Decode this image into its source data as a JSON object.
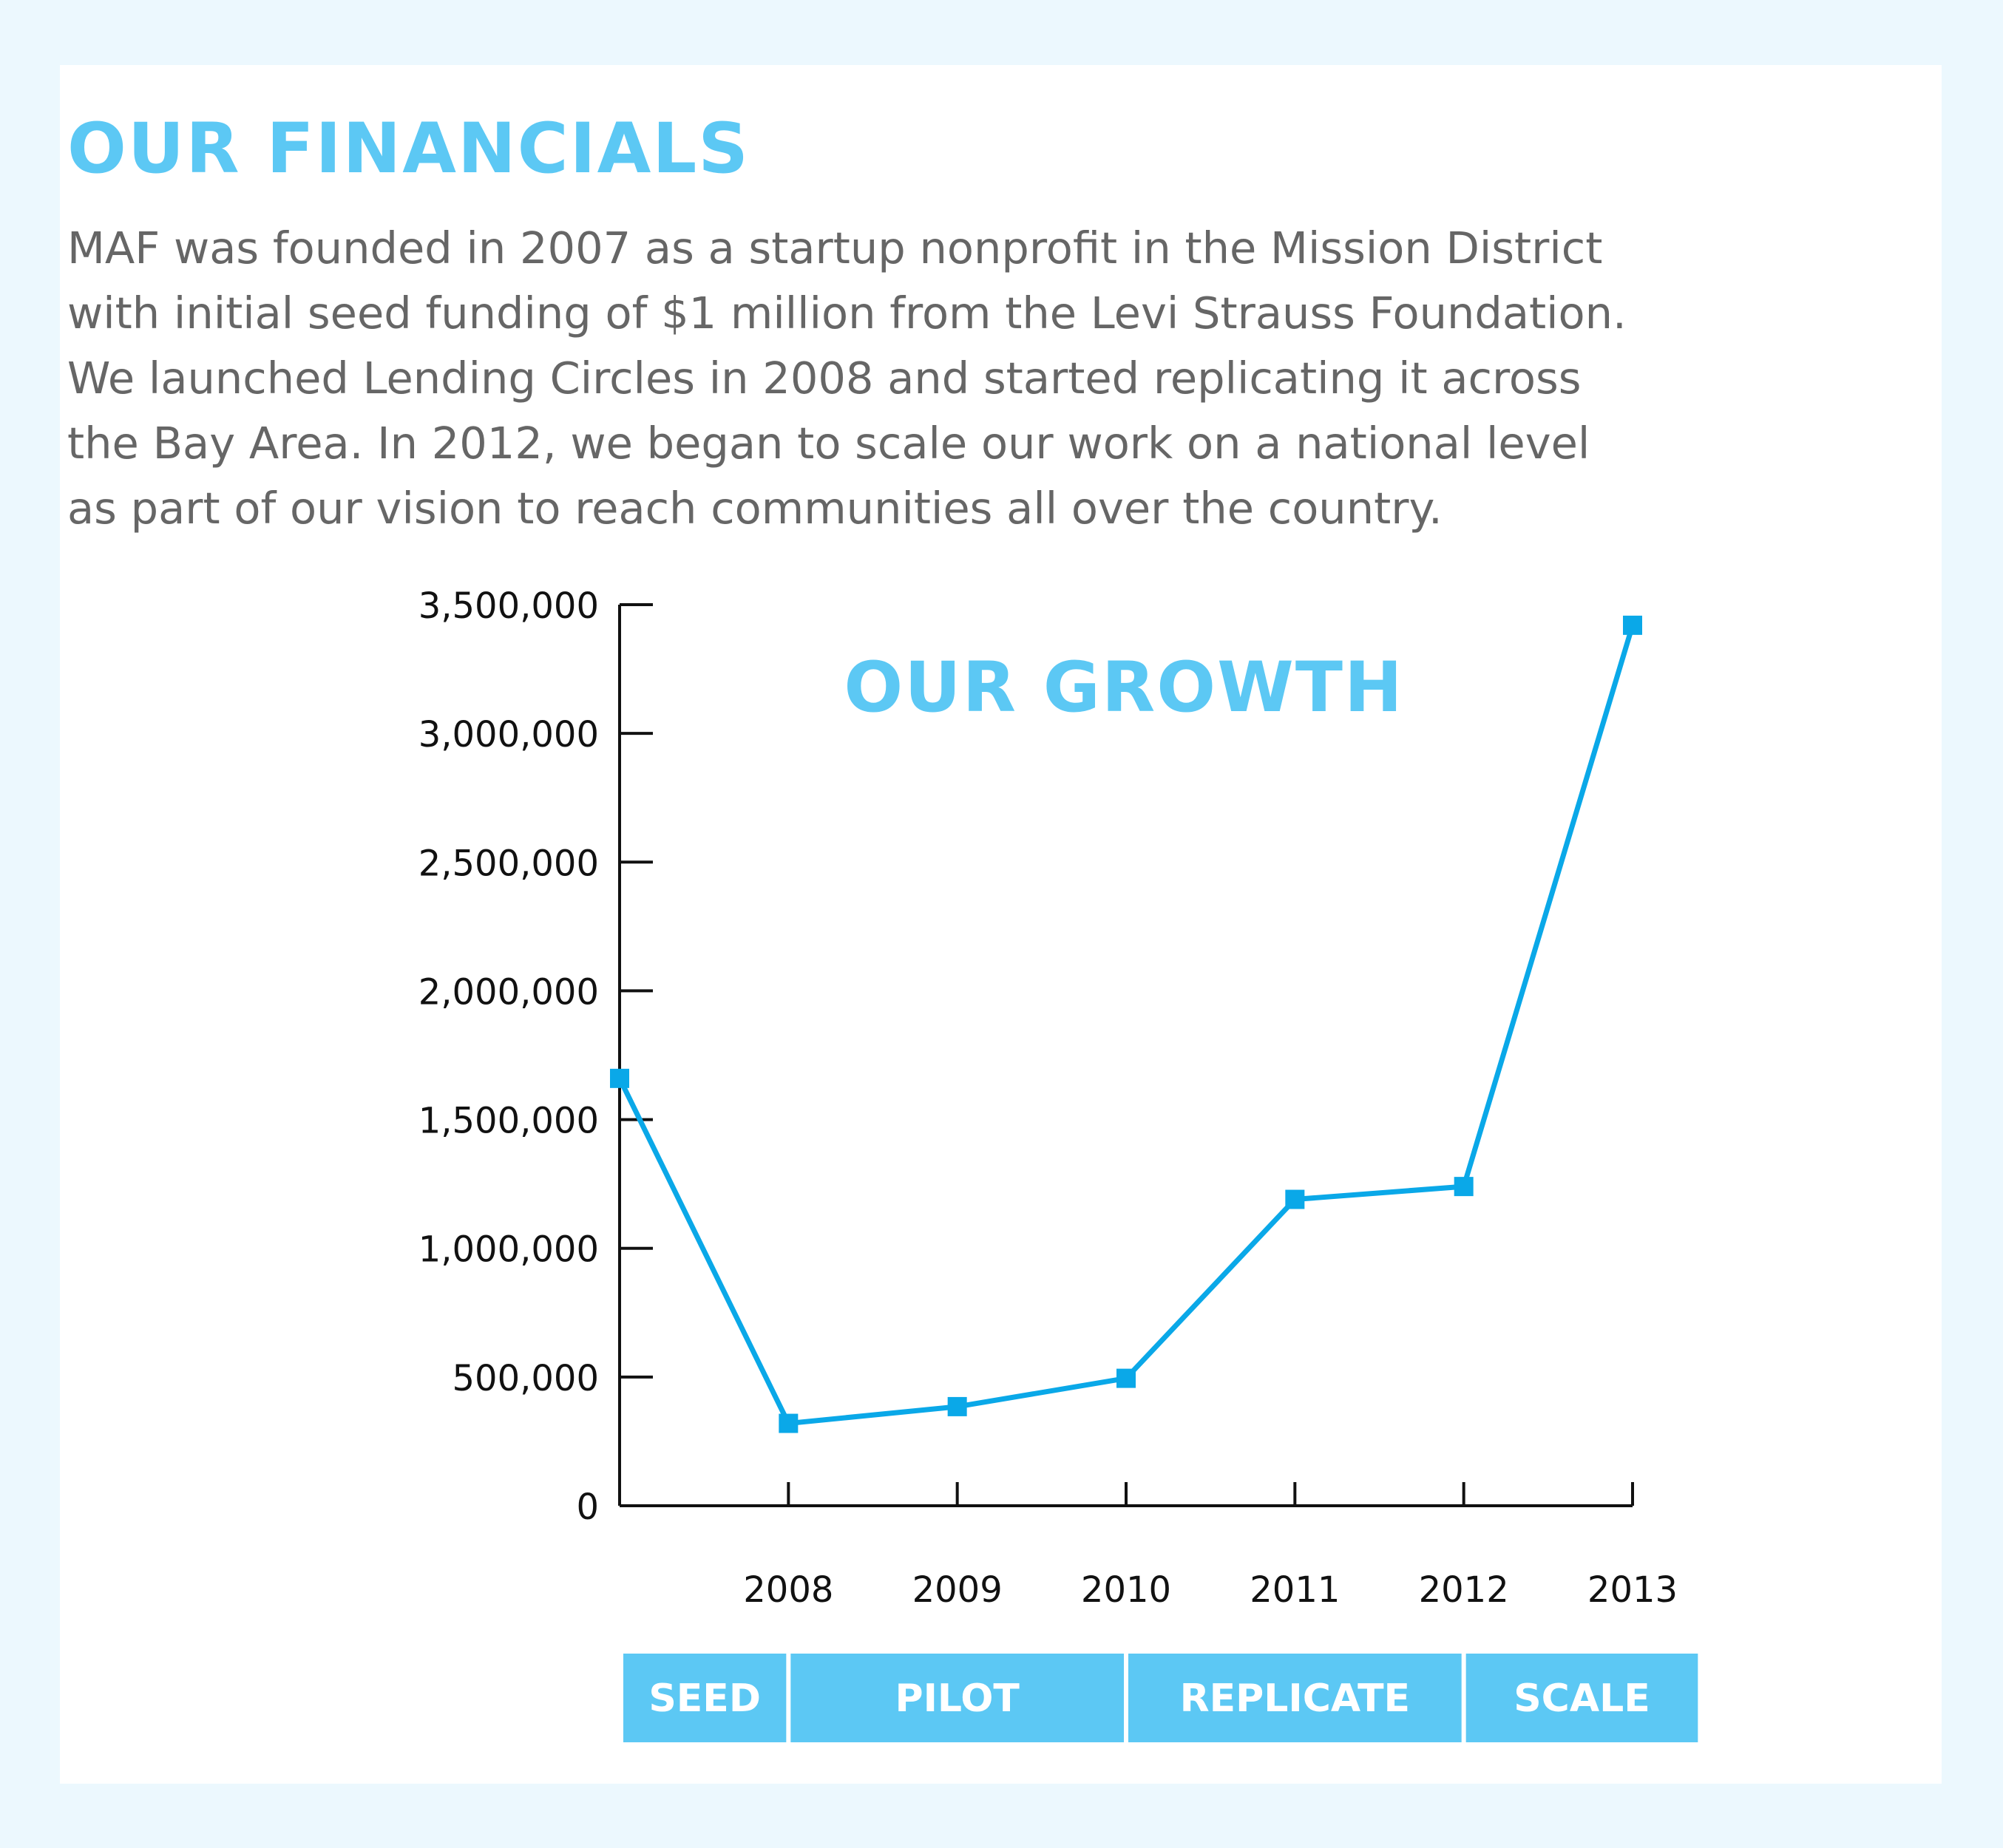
{
  "page": {
    "heading": "OUR FINANCIALS",
    "body_lines": [
      "MAF was founded in 2007 as a startup nonprofit in the Mission District",
      "with initial seed funding of $1 million from the Levi Strauss Foundation.",
      "We launched Lending Circles in 2008 and started replicating it across",
      "the Bay Area. In 2012, we began to scale our work on a national level",
      "as part of our vision to reach communities all over the country."
    ]
  },
  "colors": {
    "page_background": "#ecf8fe",
    "card_background": "#ffffff",
    "accent": "#5cc8f4",
    "line": "#0aa8e8",
    "body_text": "#666666",
    "axis": "#111111",
    "band_text": "#ffffff"
  },
  "chart_data": {
    "type": "line",
    "title": "OUR GROWTH",
    "xlabel": "",
    "ylabel": "",
    "x": [
      2007,
      2008,
      2009,
      2010,
      2011,
      2012,
      2013
    ],
    "x_tick_labels": [
      "2008",
      "2009",
      "2010",
      "2011",
      "2012",
      "2013"
    ],
    "xlim": [
      2007,
      2013
    ],
    "y_tick_labels": [
      "0",
      "500,000",
      "1,000,000",
      "1,500,000",
      "2,000,000",
      "2,500,000",
      "3,000,000",
      "3,500,000"
    ],
    "y_ticks": [
      0,
      500000,
      1000000,
      1500000,
      2000000,
      2500000,
      3000000,
      3500000
    ],
    "ylim": [
      0,
      3500000
    ],
    "grid": false,
    "legend": "none",
    "series": [
      {
        "values": [
          1660000,
          320000,
          385000,
          495000,
          1190000,
          1240000,
          3420000
        ],
        "marker": "square"
      }
    ],
    "phases": [
      {
        "label": "SEED",
        "from": 2007,
        "to": 2008
      },
      {
        "label": "PILOT",
        "from": 2008,
        "to": 2010
      },
      {
        "label": "REPLICATE",
        "from": 2010,
        "to": 2012
      },
      {
        "label": "SCALE",
        "from": 2012,
        "to": 2013.4
      }
    ]
  }
}
